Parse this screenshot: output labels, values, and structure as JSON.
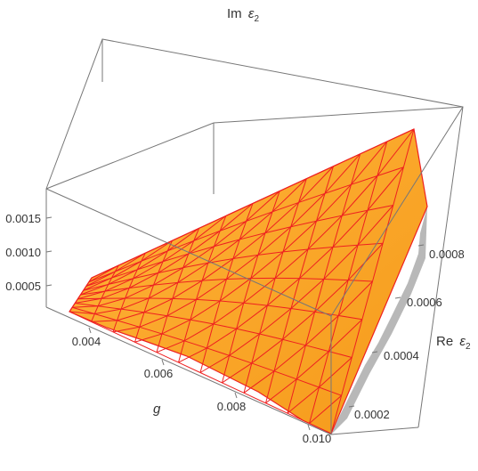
{
  "chart_data": {
    "type": "surface3d",
    "title": "",
    "axes": {
      "x": {
        "label": "g",
        "range": [
          0.0035,
          0.01
        ],
        "ticks": [
          "0.004",
          "0.006",
          "0.008",
          "0.010"
        ]
      },
      "y": {
        "label_main": "Re",
        "label_sym": "ε",
        "label_sub": "2",
        "range": [
          0.0,
          0.00085
        ],
        "ticks": [
          "0.0002",
          "0.0004",
          "0.0006",
          "0.0008"
        ]
      },
      "z": {
        "label_main": "Im",
        "label_sym": "ε",
        "label_sub": "2",
        "range": [
          0.0,
          0.002
        ],
        "ticks": [
          "0.0005",
          "0.0010",
          "0.0015"
        ]
      }
    },
    "surface": {
      "description_values": "Im eps2 surface over (g, Re eps2) region; corner samples in data units",
      "corners": [
        {
          "g": 0.0035,
          "re": 0.00045,
          "im": 0.00055
        },
        {
          "g": 0.01,
          "re": 0.0,
          "im": 0.0
        },
        {
          "g": 0.01,
          "re": 0.00085,
          "im": 0.0015
        }
      ]
    },
    "colors": {
      "surface": "#ffa826",
      "surface_dark": "#f08a10",
      "mesh": "#ee2020",
      "shadow": "#b8b8b8",
      "box": "#777777"
    }
  }
}
